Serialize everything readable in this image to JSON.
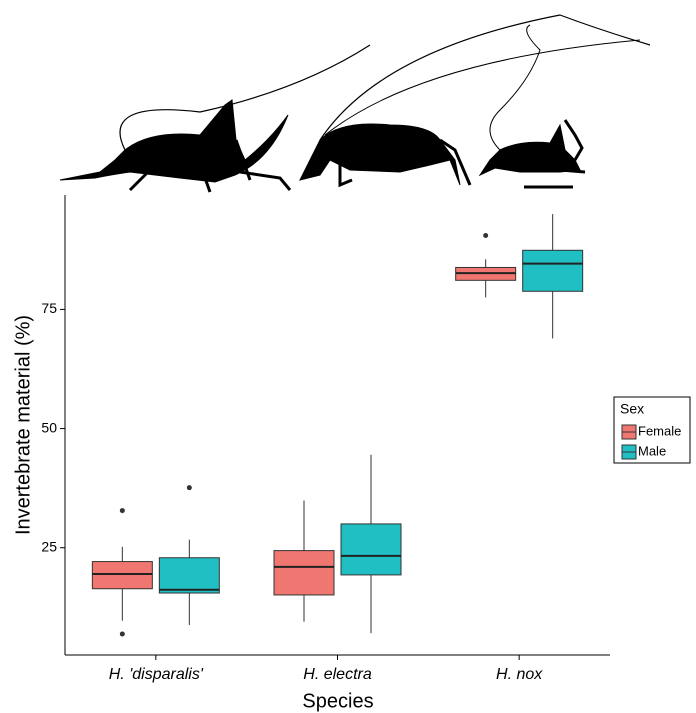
{
  "chart_data": {
    "type": "boxplot",
    "x_label": "Species",
    "y_label": "Invertebrate material (%)",
    "categories": [
      "H. 'disparalis'",
      "H. electra",
      "H. nox"
    ],
    "ylim": [
      2.5,
      99
    ],
    "yticks": [
      25,
      50,
      75
    ],
    "legend_title": "Sex",
    "legend_position": "right",
    "series": [
      {
        "name": "Female",
        "color": "#f07771",
        "min": [
          9.7,
          9.5,
          77.5
        ],
        "q1": [
          16.4,
          15.1,
          81.1
        ],
        "median": [
          19.5,
          21.0,
          82.6
        ],
        "q3": [
          22.1,
          24.4,
          83.8
        ],
        "max": [
          25.2,
          34.9,
          85.5
        ],
        "outliers": [
          [
            32.8,
            6.9
          ],
          [],
          [
            90.5
          ]
        ]
      },
      {
        "name": "Male",
        "color": "#1fbfc4",
        "min": [
          8.8,
          7.1,
          68.9
        ],
        "q1": [
          15.5,
          19.3,
          78.8
        ],
        "median": [
          16.2,
          23.3,
          84.6
        ],
        "q3": [
          22.9,
          30.0,
          87.4
        ],
        "max": [
          26.7,
          44.5,
          95.0
        ],
        "outliers": [
          [
            37.6
          ],
          [],
          []
        ]
      }
    ]
  }
}
